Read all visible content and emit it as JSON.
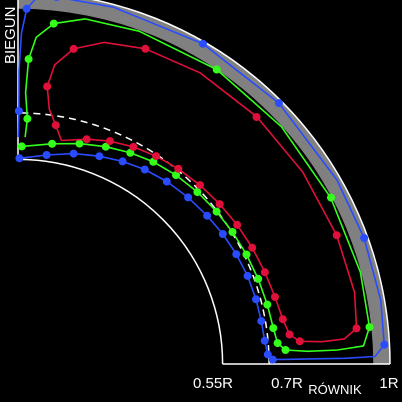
{
  "labels": {
    "pole": "BIEGUN",
    "equator": "RÓWNIK",
    "tick_055": "0.55R",
    "tick_07": "0.7R",
    "tick_1": "1R"
  },
  "colors": {
    "background": "#000000",
    "axes": "#ffffff",
    "shell_band": "#808080",
    "dashed_ring": "#ffffff",
    "blue": "#2a4cff",
    "green": "#33ff1a",
    "red": "#e0103a"
  },
  "diagram_data": {
    "type": "meridional-cross-section",
    "radial_ticks": [
      "0.55R",
      "0.7R",
      "1R"
    ],
    "curves": [
      {
        "color_key": "blue",
        "points": [
          [
            0.553,
            89.6
          ],
          [
            0.567,
            82.2
          ],
          [
            0.585,
            75.2
          ],
          [
            0.6,
            68.6
          ],
          [
            0.613,
            62.7
          ],
          [
            0.624,
            56.9
          ],
          [
            0.633,
            50.8
          ],
          [
            0.64,
            44.4
          ],
          [
            0.646,
            38.1
          ],
          [
            0.652,
            32.4
          ],
          [
            0.657,
            26.7
          ],
          [
            0.661,
            21.0
          ],
          [
            0.663,
            15.2
          ],
          [
            0.664,
            10.0
          ],
          [
            0.666,
            5.4
          ],
          [
            0.672,
            2.2
          ],
          [
            0.685,
            1.0
          ],
          [
            0.73,
            1.0
          ],
          [
            0.8,
            1.0
          ],
          [
            0.88,
            1.0
          ],
          [
            0.96,
            1.2
          ],
          [
            0.986,
            3.0
          ],
          [
            0.99,
            10.0
          ],
          [
            0.99,
            20.0
          ],
          [
            0.99,
            30.0
          ],
          [
            0.992,
            45.0
          ],
          [
            0.994,
            60.0
          ],
          [
            0.993,
            75.0
          ],
          [
            0.992,
            84.0
          ],
          [
            0.988,
            87.0
          ],
          [
            0.955,
            88.6
          ],
          [
            0.89,
            89.4
          ],
          [
            0.79,
            89.8
          ],
          [
            0.68,
            89.8
          ],
          [
            0.61,
            89.9
          ]
        ],
        "markers": [
          [
            0.553,
            89.6
          ],
          [
            0.567,
            82.2
          ],
          [
            0.585,
            75.2
          ],
          [
            0.6,
            68.6
          ],
          [
            0.613,
            62.7
          ],
          [
            0.624,
            56.9
          ],
          [
            0.633,
            50.8
          ],
          [
            0.64,
            44.4
          ],
          [
            0.646,
            38.1
          ],
          [
            0.652,
            32.4
          ],
          [
            0.657,
            26.7
          ],
          [
            0.661,
            21.0
          ],
          [
            0.663,
            15.2
          ],
          [
            0.664,
            10.0
          ],
          [
            0.666,
            5.4
          ],
          [
            0.672,
            2.2
          ],
          [
            0.685,
            1.0
          ],
          [
            0.986,
            3.0
          ],
          [
            0.99,
            20.0
          ],
          [
            0.992,
            45.0
          ],
          [
            0.994,
            60.0
          ],
          [
            0.992,
            84.0
          ],
          [
            0.955,
            88.6
          ],
          [
            0.68,
            89.8
          ]
        ]
      },
      {
        "color_key": "green",
        "points": [
          [
            0.585,
            89.0
          ],
          [
            0.599,
            81.2
          ],
          [
            0.615,
            74.4
          ],
          [
            0.63,
            68.0
          ],
          [
            0.643,
            62.0
          ],
          [
            0.654,
            56.2
          ],
          [
            0.662,
            50.1
          ],
          [
            0.668,
            43.8
          ],
          [
            0.673,
            37.5
          ],
          [
            0.677,
            31.6
          ],
          [
            0.681,
            25.6
          ],
          [
            0.685,
            19.5
          ],
          [
            0.689,
            13.4
          ],
          [
            0.693,
            8.0
          ],
          [
            0.7,
            4.6
          ],
          [
            0.72,
            3.0
          ],
          [
            0.78,
            2.5
          ],
          [
            0.86,
            2.5
          ],
          [
            0.93,
            3.0
          ],
          [
            0.95,
            6.0
          ],
          [
            0.953,
            15.0
          ],
          [
            0.952,
            28.0
          ],
          [
            0.953,
            42.0
          ],
          [
            0.955,
            56.0
          ],
          [
            0.952,
            70.0
          ],
          [
            0.945,
            79.0
          ],
          [
            0.92,
            84.0
          ],
          [
            0.88,
            86.8
          ],
          [
            0.82,
            88.0
          ],
          [
            0.73,
            88.4
          ],
          [
            0.66,
            87.8
          ],
          [
            0.61,
            88.2
          ]
        ],
        "markers": [
          [
            0.585,
            89.0
          ],
          [
            0.599,
            81.2
          ],
          [
            0.615,
            74.4
          ],
          [
            0.63,
            68.0
          ],
          [
            0.643,
            62.0
          ],
          [
            0.654,
            56.2
          ],
          [
            0.662,
            50.1
          ],
          [
            0.668,
            43.8
          ],
          [
            0.673,
            37.5
          ],
          [
            0.677,
            31.6
          ],
          [
            0.681,
            25.6
          ],
          [
            0.685,
            19.5
          ],
          [
            0.689,
            13.4
          ],
          [
            0.693,
            8.0
          ],
          [
            0.7,
            4.6
          ],
          [
            0.72,
            3.0
          ],
          [
            0.95,
            6.0
          ],
          [
            0.953,
            28.0
          ],
          [
            0.955,
            56.0
          ],
          [
            0.92,
            84.0
          ],
          [
            0.82,
            88.0
          ],
          [
            0.66,
            87.8
          ]
        ]
      },
      {
        "color_key": "red",
        "points": [
          [
            0.612,
            79.0
          ],
          [
            0.632,
            73.0
          ],
          [
            0.648,
            67.6
          ],
          [
            0.661,
            62.0
          ],
          [
            0.671,
            56.4
          ],
          [
            0.679,
            50.6
          ],
          [
            0.686,
            44.5
          ],
          [
            0.692,
            38.4
          ],
          [
            0.698,
            32.4
          ],
          [
            0.703,
            26.4
          ],
          [
            0.708,
            20.4
          ],
          [
            0.714,
            14.6
          ],
          [
            0.722,
            9.6
          ],
          [
            0.734,
            6.2
          ],
          [
            0.76,
            4.6
          ],
          [
            0.82,
            4.2
          ],
          [
            0.88,
            4.4
          ],
          [
            0.915,
            6.0
          ],
          [
            0.925,
            12.0
          ],
          [
            0.924,
            22.0
          ],
          [
            0.923,
            34.0
          ],
          [
            0.924,
            46.0
          ],
          [
            0.923,
            58.0
          ],
          [
            0.914,
            68.0
          ],
          [
            0.895,
            75.0
          ],
          [
            0.86,
            80.0
          ],
          [
            0.81,
            83.0
          ],
          [
            0.75,
            84.0
          ],
          [
            0.69,
            83.0
          ],
          [
            0.65,
            81.0
          ],
          [
            0.612,
            79.0
          ]
        ],
        "markers": [
          [
            0.632,
            73.0
          ],
          [
            0.648,
            67.6
          ],
          [
            0.661,
            62.0
          ],
          [
            0.671,
            56.4
          ],
          [
            0.679,
            50.6
          ],
          [
            0.686,
            44.5
          ],
          [
            0.692,
            38.4
          ],
          [
            0.698,
            32.4
          ],
          [
            0.703,
            26.4
          ],
          [
            0.708,
            20.4
          ],
          [
            0.714,
            14.6
          ],
          [
            0.722,
            9.6
          ],
          [
            0.734,
            6.2
          ],
          [
            0.76,
            4.6
          ],
          [
            0.915,
            6.0
          ],
          [
            0.924,
            22.0
          ],
          [
            0.923,
            46.0
          ],
          [
            0.914,
            68.0
          ],
          [
            0.86,
            80.0
          ],
          [
            0.75,
            84.0
          ],
          [
            0.65,
            81.0
          ]
        ]
      }
    ]
  }
}
